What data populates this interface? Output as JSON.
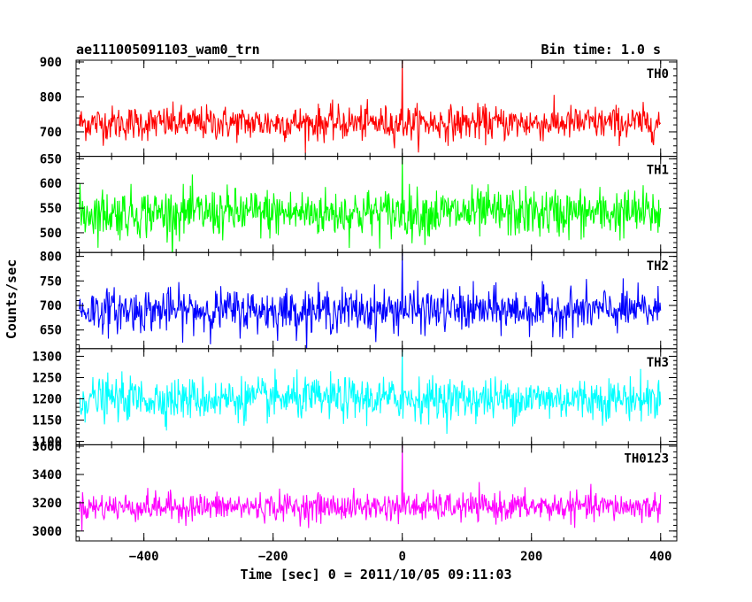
{
  "header": {
    "title": "ae111005091103_wam0_trn",
    "bin_time": "Bin time: 1.0 s"
  },
  "chart_data": {
    "type": "line",
    "xlabel": "Time [sec] 0 = 2011/10/05 09:11:03",
    "ylabel": "Counts/sec",
    "xlim": [
      -505,
      425
    ],
    "x_ticks": [
      -400,
      -200,
      0,
      200,
      400
    ],
    "x_tick_labels": [
      "−400",
      "−200",
      "0",
      "200",
      "400"
    ],
    "x_range_data": [
      -500,
      400
    ],
    "bin_time_s": 1.0,
    "panels": [
      {
        "name": "TH0",
        "color": "#ff0000",
        "ylim": [
          630,
          905
        ],
        "yticks": [
          700,
          800,
          900
        ],
        "ytick_labels": [
          "700",
          "800",
          "900"
        ],
        "mean": 725,
        "noise_amplitude": 45,
        "spike": {
          "x": 0,
          "value": 905
        },
        "extreme_min": 630,
        "extreme_max": 870
      },
      {
        "name": "TH1",
        "color": "#00ff00",
        "ylim": [
          460,
          655
        ],
        "yticks": [
          500,
          550,
          600,
          650
        ],
        "ytick_labels": [
          "500",
          "550",
          "600",
          "650"
        ],
        "mean": 540,
        "noise_amplitude": 45,
        "spike": {
          "x": 0,
          "value": 655
        },
        "extreme_min": 460,
        "extreme_max": 640
      },
      {
        "name": "TH2",
        "color": "#0000ff",
        "ylim": [
          612,
          808
        ],
        "yticks": [
          650,
          700,
          750,
          800
        ],
        "ytick_labels": [
          "650",
          "700",
          "750",
          "800"
        ],
        "mean": 690,
        "noise_amplitude": 40,
        "spike": {
          "x": 0,
          "value": 808
        },
        "extreme_min": 612,
        "extreme_max": 790
      },
      {
        "name": "TH3",
        "color": "#00ffff",
        "ylim": [
          1092,
          1318
        ],
        "yticks": [
          1100,
          1150,
          1200,
          1250,
          1300
        ],
        "ytick_labels": [
          "1100",
          "1150",
          "1200",
          "1250",
          "1300"
        ],
        "mean": 1200,
        "noise_amplitude": 45,
        "spike": {
          "x": 0,
          "value": 1315
        },
        "extreme_min": 1092,
        "extreme_max": 1318
      },
      {
        "name": "TH0123",
        "color": "#ff00ff",
        "ylim": [
          2930,
          3610
        ],
        "yticks": [
          3000,
          3200,
          3400,
          3600
        ],
        "ytick_labels": [
          "3000",
          "3200",
          "3400",
          "3600"
        ],
        "mean": 3170,
        "noise_amplitude": 90,
        "spike": {
          "x": 0,
          "value": 3610
        },
        "extreme_min": 2930,
        "extreme_max": 3410
      }
    ]
  }
}
